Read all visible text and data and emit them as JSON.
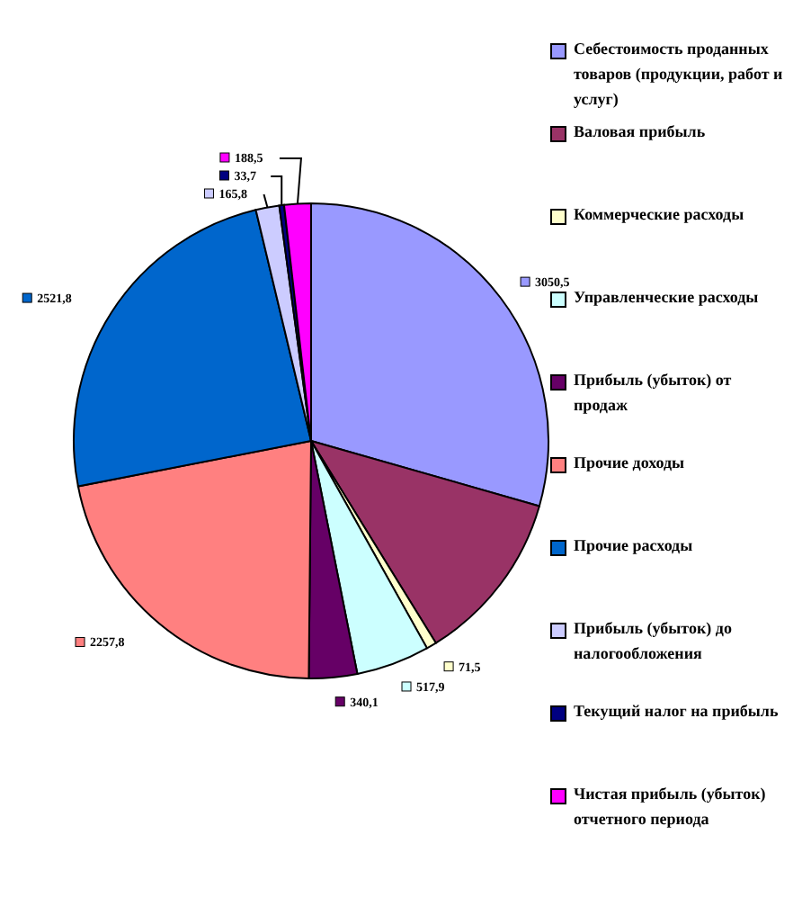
{
  "chart_data": {
    "type": "pie",
    "categories": [
      "Себестоимость проданных товаров (продукции, работ и услуг)",
      "Валовая прибыль",
      "Коммерческие расходы",
      "Управленческие расходы",
      "Прибыль (убыток) от продаж",
      "Прочие доходы",
      "Прочие расходы",
      "Прибыль (убыток) до налогообложения",
      "Текущий налог на прибыль",
      "Чистая прибыль (убыток) отчетного периода"
    ],
    "values": [
      3050.5,
      1220,
      71.5,
      517.9,
      340.1,
      2257.8,
      2521.8,
      165.8,
      33.7,
      188.5
    ],
    "value_labels": [
      "3050,5",
      null,
      "71,5",
      "517,9",
      "340,1",
      "2257,8",
      "2521,8",
      "165,8",
      "33,7",
      "188,5"
    ],
    "colors": [
      "#9999ff",
      "#993366",
      "#ffffcc",
      "#ccffff",
      "#660066",
      "#ff8080",
      "#0066cc",
      "#ccccff",
      "#000080",
      "#ff00ff"
    ],
    "legend": "right"
  }
}
